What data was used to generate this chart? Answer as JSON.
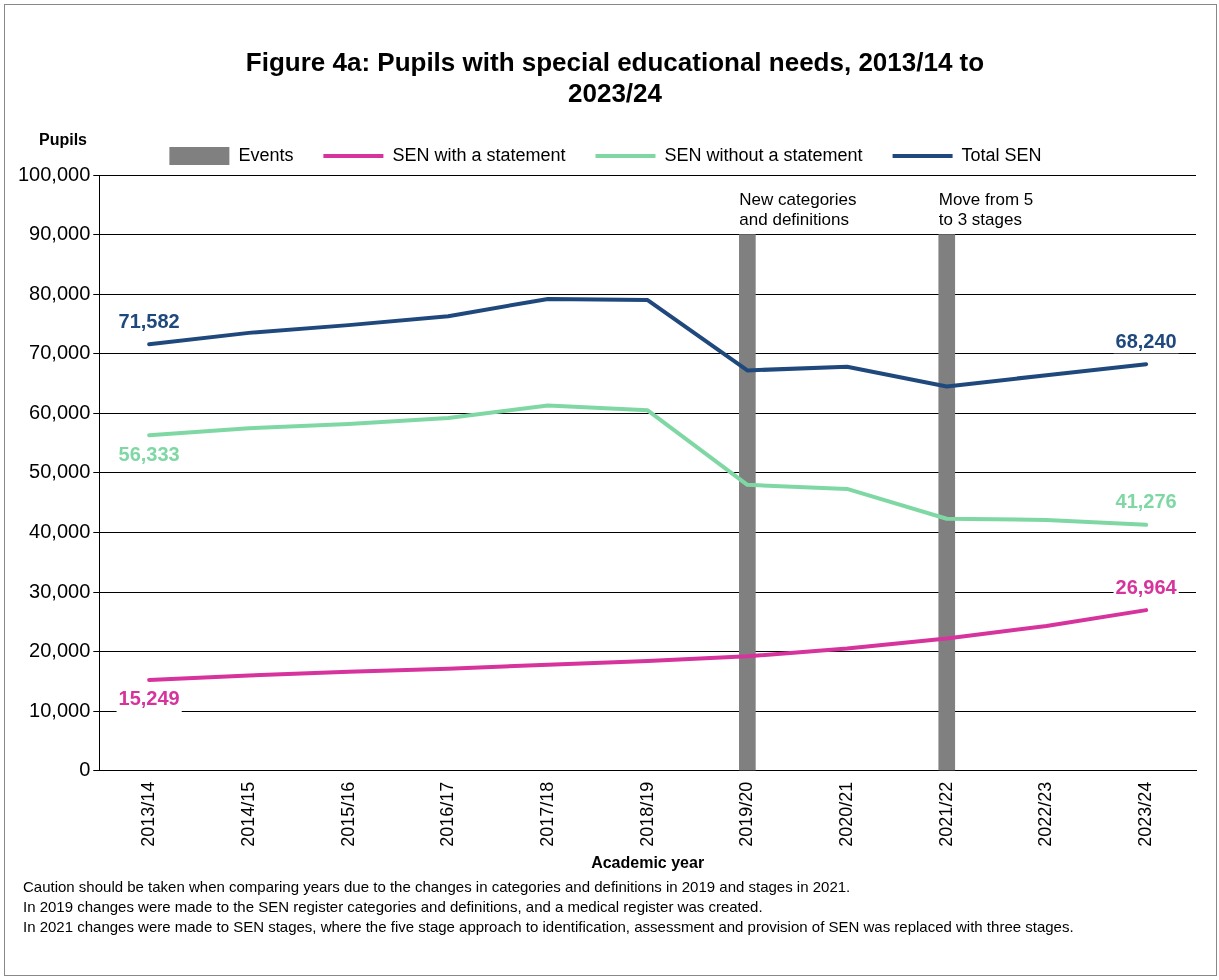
{
  "chart_data": {
    "type": "line",
    "title": "Figure 4a: Pupils with special educational needs, 2013/14 to 2023/24",
    "xlabel": "Academic year",
    "ylabel": "Pupils",
    "categories": [
      "2013/14",
      "2014/15",
      "2015/16",
      "2016/17",
      "2017/18",
      "2018/19",
      "2019/20",
      "2020/21",
      "2021/22",
      "2022/23",
      "2023/24"
    ],
    "series": [
      {
        "name": "Events",
        "type": "bar",
        "color": "#808080",
        "values": [
          null,
          null,
          null,
          null,
          null,
          null,
          90000,
          null,
          90000,
          null,
          null
        ]
      },
      {
        "name": "SEN with a statement",
        "color": "#d6339c",
        "values": [
          15249,
          16000,
          16600,
          17100,
          17800,
          18400,
          19200,
          20500,
          22200,
          24300,
          26964
        ],
        "value_labels": [
          "15,249",
          null,
          null,
          null,
          null,
          null,
          null,
          null,
          null,
          null,
          "26,964"
        ]
      },
      {
        "name": "SEN without a statement",
        "color": "#7fd8a4",
        "values": [
          56333,
          57500,
          58200,
          59200,
          61300,
          60500,
          48000,
          47300,
          42300,
          42100,
          41276
        ],
        "value_labels": [
          "56,333",
          null,
          null,
          null,
          null,
          null,
          null,
          null,
          null,
          null,
          "41,276"
        ]
      },
      {
        "name": "Total SEN",
        "color": "#1f497d",
        "values": [
          71582,
          73500,
          74800,
          76300,
          79200,
          79000,
          67200,
          67800,
          64500,
          66400,
          68240
        ],
        "value_labels": [
          "71,582",
          null,
          null,
          null,
          null,
          null,
          null,
          null,
          null,
          null,
          "68,240"
        ]
      }
    ],
    "ylim": [
      0,
      100000
    ],
    "yticks": [
      {
        "value": 0,
        "label": "0"
      },
      {
        "value": 10000,
        "label": "10,000"
      },
      {
        "value": 20000,
        "label": "20,000"
      },
      {
        "value": 30000,
        "label": "30,000"
      },
      {
        "value": 40000,
        "label": "40,000"
      },
      {
        "value": 50000,
        "label": "50,000"
      },
      {
        "value": 60000,
        "label": "60,000"
      },
      {
        "value": 70000,
        "label": "70,000"
      },
      {
        "value": 80000,
        "label": "80,000"
      },
      {
        "value": 90000,
        "label": "90,000"
      },
      {
        "value": 100000,
        "label": "100,000"
      }
    ],
    "grid": "y",
    "legend": "top",
    "marker": "none",
    "line_style": "solid",
    "annotations": [
      "New categories\nand definitions",
      "Move from 5\nto 3 stages",
      "Caution should be taken when comparing years due to the changes in categories and definitions in 2019 and stages in 2021.",
      "In 2019 changes were made to the SEN register categories and definitions, and a medical register was created.",
      "In 2021 changes were made to SEN stages, where the five stage approach to identification, assessment and provision of SEN was replaced with three stages."
    ]
  }
}
